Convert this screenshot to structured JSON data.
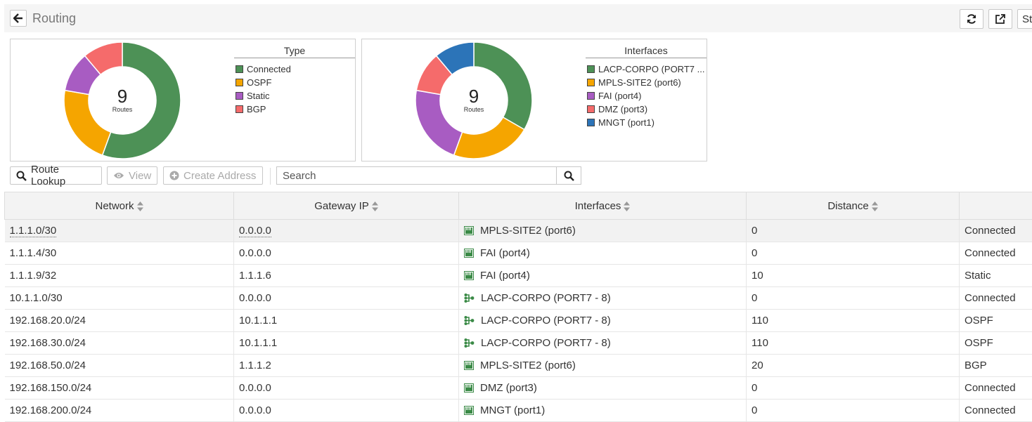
{
  "header": {
    "title": "Routing",
    "clipped_button_label": "St"
  },
  "charts": [
    {
      "center_value": "9",
      "center_label": "Routes",
      "legend_title": "Type",
      "items": [
        {
          "label": "Connected",
          "value": 5,
          "color": "#4d9156"
        },
        {
          "label": "OSPF",
          "value": 2,
          "color": "#f5a500"
        },
        {
          "label": "Static",
          "value": 1,
          "color": "#a85cc2"
        },
        {
          "label": "BGP",
          "value": 1,
          "color": "#f56b6b"
        }
      ]
    },
    {
      "center_value": "9",
      "center_label": "Routes",
      "legend_title": "Interfaces",
      "items": [
        {
          "label": "LACP-CORPO (PORT7 ...",
          "value": 3,
          "color": "#4d9156"
        },
        {
          "label": "MPLS-SITE2 (port6)",
          "value": 2,
          "color": "#f5a500"
        },
        {
          "label": "FAI (port4)",
          "value": 2,
          "color": "#a85cc2"
        },
        {
          "label": "DMZ (port3)",
          "value": 1,
          "color": "#f56b6b"
        },
        {
          "label": "MNGT (port1)",
          "value": 1,
          "color": "#2c74b8"
        }
      ]
    }
  ],
  "chart_data": [
    {
      "type": "pie",
      "categories": [
        "Connected",
        "OSPF",
        "Static",
        "BGP"
      ],
      "values": [
        5,
        2,
        1,
        1
      ],
      "title": "Type"
    },
    {
      "type": "pie",
      "categories": [
        "LACP-CORPO (PORT7 ...",
        "MPLS-SITE2 (port6)",
        "FAI (port4)",
        "DMZ (port3)",
        "MNGT (port1)"
      ],
      "values": [
        3,
        2,
        2,
        1,
        1
      ],
      "title": "Interfaces"
    }
  ],
  "toolbar": {
    "route_lookup": "Route Lookup",
    "view": "View",
    "create_address": "Create Address",
    "search_placeholder": "Search"
  },
  "table": {
    "columns": [
      "Network",
      "Gateway IP",
      "Interfaces",
      "Distance",
      ""
    ],
    "rows": [
      {
        "network": "1.1.1.0/30",
        "gateway": "0.0.0.0",
        "iface": "MPLS-SITE2 (port6)",
        "iface_type": "port",
        "distance": "0",
        "type": "Connected"
      },
      {
        "network": "1.1.1.4/30",
        "gateway": "0.0.0.0",
        "iface": "FAI (port4)",
        "iface_type": "port",
        "distance": "0",
        "type": "Connected"
      },
      {
        "network": "1.1.1.9/32",
        "gateway": "1.1.1.6",
        "iface": "FAI (port4)",
        "iface_type": "port",
        "distance": "10",
        "type": "Static"
      },
      {
        "network": "10.1.1.0/30",
        "gateway": "0.0.0.0",
        "iface": "LACP-CORPO (PORT7 - 8)",
        "iface_type": "aggregate",
        "distance": "0",
        "type": "Connected"
      },
      {
        "network": "192.168.20.0/24",
        "gateway": "10.1.1.1",
        "iface": "LACP-CORPO (PORT7 - 8)",
        "iface_type": "aggregate",
        "distance": "110",
        "type": "OSPF"
      },
      {
        "network": "192.168.30.0/24",
        "gateway": "10.1.1.1",
        "iface": "LACP-CORPO (PORT7 - 8)",
        "iface_type": "aggregate",
        "distance": "110",
        "type": "OSPF"
      },
      {
        "network": "192.168.50.0/24",
        "gateway": "1.1.1.2",
        "iface": "MPLS-SITE2 (port6)",
        "iface_type": "port",
        "distance": "20",
        "type": "BGP"
      },
      {
        "network": "192.168.150.0/24",
        "gateway": "0.0.0.0",
        "iface": "DMZ (port3)",
        "iface_type": "port",
        "distance": "0",
        "type": "Connected"
      },
      {
        "network": "192.168.200.0/24",
        "gateway": "0.0.0.0",
        "iface": "MNGT (port1)",
        "iface_type": "port",
        "distance": "0",
        "type": "Connected"
      }
    ]
  }
}
